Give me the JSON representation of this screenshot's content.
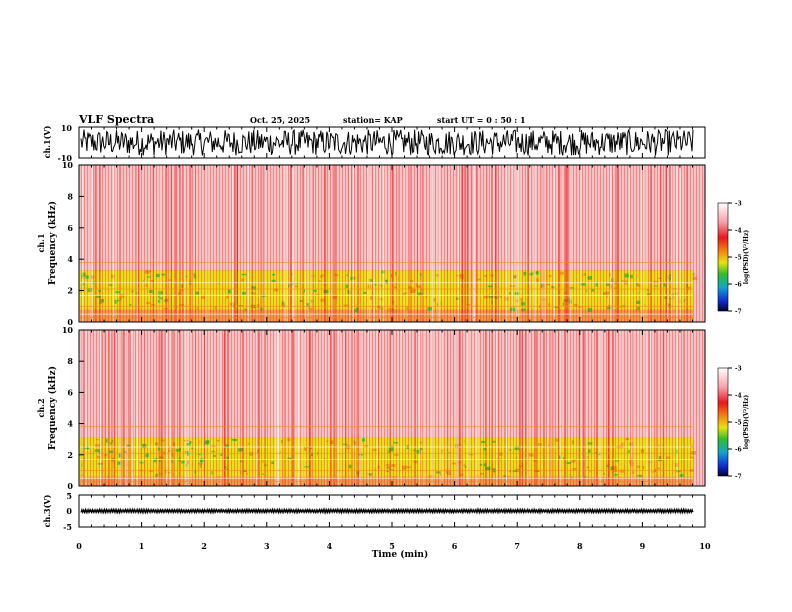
{
  "header": {
    "title": "VLF Spectra",
    "date": "Oct. 25, 2025",
    "station": "station= KAP",
    "start": "start UT =  0 : 50 : 1"
  },
  "colors": {
    "background": "#ffffff",
    "axis": "#000000",
    "spectrogram_base": "#f4c4c4",
    "band_red": "#e8171f",
    "band_orange": "#f08a12",
    "band_yellow": "#e8e20e",
    "band_green": "#2ebd2e"
  },
  "colorbar": {
    "label": "log(PSD)(V²/Hz)",
    "ticks": [
      "-3",
      "-4",
      "-5",
      "-6",
      "-7"
    ],
    "range": [
      -7,
      -3
    ]
  },
  "chart_data": [
    {
      "type": "line",
      "name": "ch1-waveform",
      "ylabel": "ch.1(V)",
      "ylim": [
        -10,
        10
      ],
      "yticks": [
        "10",
        "-10"
      ],
      "xlim": [
        0,
        10
      ],
      "description_values": {
        "amplitude_range": [
          -10,
          10
        ]
      }
    },
    {
      "type": "heatmap",
      "name": "ch1-spectrogram",
      "ylabel": "ch.1",
      "ylabel2": "Frequency (kHz)",
      "ylim": [
        0,
        10
      ],
      "yticks": [
        "0",
        "2",
        "4",
        "6",
        "8",
        "10"
      ],
      "xlim": [
        0,
        10
      ],
      "bands": [
        {
          "from_khz": 0.0,
          "to_khz": 0.8,
          "level": -4
        },
        {
          "from_khz": 0.8,
          "to_khz": 3.3,
          "level": -5
        },
        {
          "from_khz": 3.3,
          "to_khz": 10.0,
          "level": -3.6
        }
      ]
    },
    {
      "type": "heatmap",
      "name": "ch2-spectrogram",
      "ylabel": "ch.2",
      "ylabel2": "Frequency (kHz)",
      "ylim": [
        0,
        10
      ],
      "yticks": [
        "0",
        "2",
        "4",
        "6",
        "8",
        "10"
      ],
      "xlim": [
        0,
        10
      ],
      "bands": [
        {
          "from_khz": 0.0,
          "to_khz": 0.6,
          "level": -4
        },
        {
          "from_khz": 0.6,
          "to_khz": 3.1,
          "level": -5
        },
        {
          "from_khz": 3.1,
          "to_khz": 10.0,
          "level": -3.6
        }
      ]
    },
    {
      "type": "line",
      "name": "ch3-waveform",
      "ylabel": "ch.3(V)",
      "ylim": [
        -5,
        5
      ],
      "yticks": [
        "5",
        "0",
        "-5"
      ],
      "xlim": [
        0,
        10
      ],
      "description_values": {
        "amplitude_range": [
          -0.5,
          0.5
        ]
      }
    }
  ],
  "xaxis": {
    "label": "Time (min)",
    "ticks": [
      "0",
      "1",
      "2",
      "3",
      "4",
      "5",
      "6",
      "7",
      "8",
      "9",
      "10"
    ]
  }
}
